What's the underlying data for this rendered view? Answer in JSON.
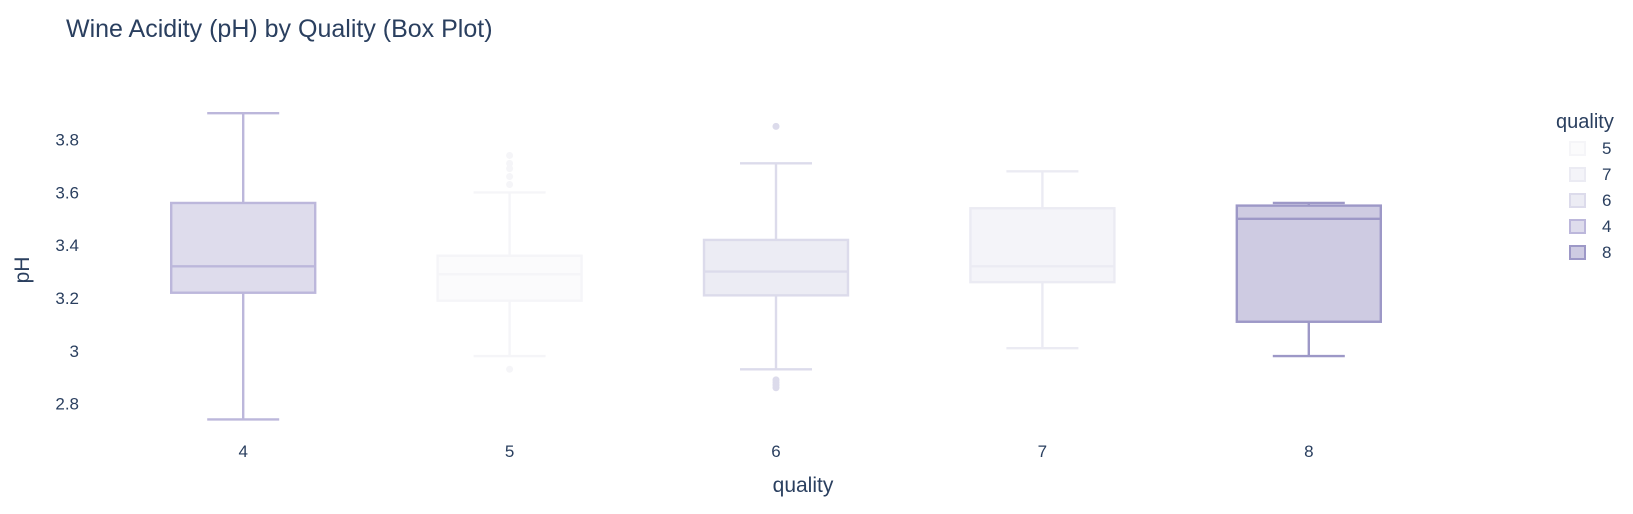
{
  "chart_data": {
    "type": "box",
    "title": "Wine Acidity (pH) by Quality (Box Plot)",
    "xlabel": "quality",
    "ylabel": "pH",
    "ylim": [
      2.7,
      3.95
    ],
    "y_ticks": [
      2.8,
      3.0,
      3.2,
      3.4,
      3.6,
      3.8
    ],
    "y_tick_labels": [
      "2.8",
      "3",
      "3.2",
      "3.4",
      "3.6",
      "3.8"
    ],
    "categories": [
      "4",
      "5",
      "6",
      "7",
      "8"
    ],
    "series": [
      {
        "name": "4",
        "category": "4",
        "color": "#bcb7db",
        "fill": "#dedcec",
        "opacity": 1.0,
        "min": 2.74,
        "q1": 3.22,
        "median": 3.32,
        "q3": 3.56,
        "max": 3.9,
        "outliers": []
      },
      {
        "name": "5",
        "category": "5",
        "color": "#f5f5f8",
        "fill": "#fbfbfc",
        "opacity": 1.0,
        "min": 2.98,
        "q1": 3.19,
        "median": 3.29,
        "q3": 3.36,
        "max": 3.6,
        "outliers": [
          2.93,
          3.63,
          3.66,
          3.69,
          3.71,
          3.74
        ]
      },
      {
        "name": "6",
        "category": "6",
        "color": "#dcdbeb",
        "fill": "#ececf4",
        "opacity": 1.0,
        "min": 2.93,
        "q1": 3.21,
        "median": 3.3,
        "q3": 3.42,
        "max": 3.71,
        "outliers": [
          3.85,
          2.89,
          2.88,
          2.87,
          2.86
        ]
      },
      {
        "name": "7",
        "category": "7",
        "color": "#ebebf3",
        "fill": "#f4f4f9",
        "opacity": 1.0,
        "min": 3.01,
        "q1": 3.26,
        "median": 3.32,
        "q3": 3.54,
        "max": 3.68,
        "outliers": []
      },
      {
        "name": "8",
        "category": "8",
        "color": "#9d98c7",
        "fill": "#cecbe2",
        "opacity": 1.0,
        "min": 2.98,
        "q1": 3.11,
        "median": 3.5,
        "q3": 3.55,
        "max": 3.56,
        "outliers": []
      }
    ],
    "legend": {
      "title": "quality",
      "placement": "top-right",
      "order": [
        "5",
        "7",
        "6",
        "4",
        "8"
      ]
    }
  }
}
